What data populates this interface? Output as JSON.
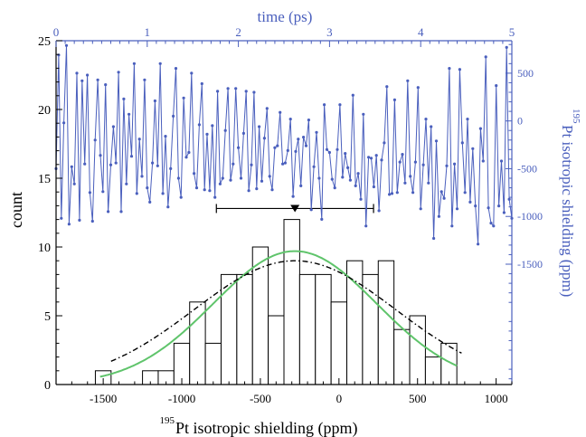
{
  "chart_data": [
    {
      "type": "bar",
      "xlabel_sup": "195",
      "xlabel": "Pt isotropic shielding (ppm)",
      "ylabel": "count",
      "xlim": [
        -1800,
        1100
      ],
      "ylim": [
        0,
        25
      ],
      "x_ticks": [
        "-1500",
        "-1000",
        "-500",
        "0",
        "500",
        "1000"
      ],
      "y_ticks": [
        "0",
        "5",
        "10",
        "15",
        "20",
        "25"
      ],
      "bin_width": 100,
      "bins": [
        {
          "x": -1500,
          "count": 1
        },
        {
          "x": -1400,
          "count": 0
        },
        {
          "x": -1300,
          "count": 0
        },
        {
          "x": -1200,
          "count": 1
        },
        {
          "x": -1100,
          "count": 1
        },
        {
          "x": -1000,
          "count": 3
        },
        {
          "x": -900,
          "count": 6
        },
        {
          "x": -800,
          "count": 3
        },
        {
          "x": -700,
          "count": 8
        },
        {
          "x": -600,
          "count": 8
        },
        {
          "x": -500,
          "count": 10
        },
        {
          "x": -400,
          "count": 5
        },
        {
          "x": -300,
          "count": 12
        },
        {
          "x": -200,
          "count": 8
        },
        {
          "x": -100,
          "count": 8
        },
        {
          "x": 0,
          "count": 6
        },
        {
          "x": 100,
          "count": 9
        },
        {
          "x": 200,
          "count": 8
        },
        {
          "x": 300,
          "count": 9
        },
        {
          "x": 400,
          "count": 4
        },
        {
          "x": 500,
          "count": 5
        },
        {
          "x": 600,
          "count": 2
        },
        {
          "x": 700,
          "count": 3
        }
      ],
      "fits": [
        {
          "style": "solid",
          "color": "#5fc46b",
          "mean": -280,
          "sigma": 520,
          "peak": 9.7,
          "x_range": [
            -1520,
            750
          ]
        },
        {
          "style": "dash-dot",
          "color": "#000000",
          "mean": -280,
          "sigma": 640,
          "peak": 9.0,
          "x_range": [
            -1450,
            780
          ]
        }
      ],
      "mean_marker": {
        "x": -280,
        "y": 12.8,
        "x_err_low": -780,
        "x_err_high": 220
      }
    },
    {
      "type": "line",
      "xlabel": "time (ps)",
      "ylabel_sup": "195",
      "ylabel": "Pt isotropic shielding (ppm)",
      "xlim": [
        0,
        5
      ],
      "ylim": [
        -2760,
        840
      ],
      "x_ticks": [
        "0",
        "1",
        "2",
        "3",
        "4",
        "5"
      ],
      "y_ticks": [
        "500",
        "0",
        "-500",
        "-1000",
        "-1500"
      ],
      "color": "#4a5fbd",
      "y": [
        -500,
        690,
        -1020,
        -20,
        790,
        -1080,
        -480,
        -660,
        500,
        -1040,
        420,
        -450,
        480,
        -750,
        -1050,
        -200,
        430,
        -360,
        -740,
        380,
        -950,
        -460,
        -60,
        -440,
        510,
        -950,
        230,
        -660,
        70,
        -370,
        600,
        -760,
        -190,
        -580,
        430,
        -700,
        -850,
        -440,
        210,
        -470,
        600,
        -760,
        -160,
        -900,
        -500,
        50,
        550,
        -600,
        -800,
        240,
        -380,
        -330,
        500,
        -550,
        -700,
        -40,
        390,
        -720,
        -140,
        -730,
        -50,
        -800,
        310,
        -660,
        -600,
        -100,
        340,
        -620,
        -450,
        340,
        -280,
        -600,
        -130,
        310,
        -730,
        -460,
        300,
        -710,
        -60,
        -630,
        -180,
        130,
        -580,
        -720,
        -280,
        -260,
        90,
        -450,
        -440,
        -310,
        20,
        -790,
        -320,
        -190,
        -680,
        -170,
        -260,
        10,
        -930,
        -480,
        -120,
        -600,
        -1030,
        170,
        -300,
        -330,
        -610,
        -700,
        -300,
        170,
        -590,
        -340,
        -490,
        -620,
        270,
        -680,
        -550,
        -820,
        70,
        -1100,
        -380,
        -390,
        -690,
        -360,
        -940,
        -410,
        -230,
        360,
        -770,
        -760,
        220,
        -750,
        -430,
        -350,
        -650,
        420,
        -580,
        -750,
        -430,
        350,
        -920,
        -460,
        20,
        -650,
        -60,
        -1230,
        -210,
        -1000,
        -740,
        -810,
        -470,
        550,
        -1100,
        -450,
        -920,
        540,
        -230,
        -750,
        20,
        -850,
        -290,
        -890,
        -1290,
        -80,
        -420,
        670,
        -910,
        -1070,
        -1100,
        370,
        -890,
        -420,
        -960,
        770,
        -820,
        -1020
      ]
    }
  ]
}
